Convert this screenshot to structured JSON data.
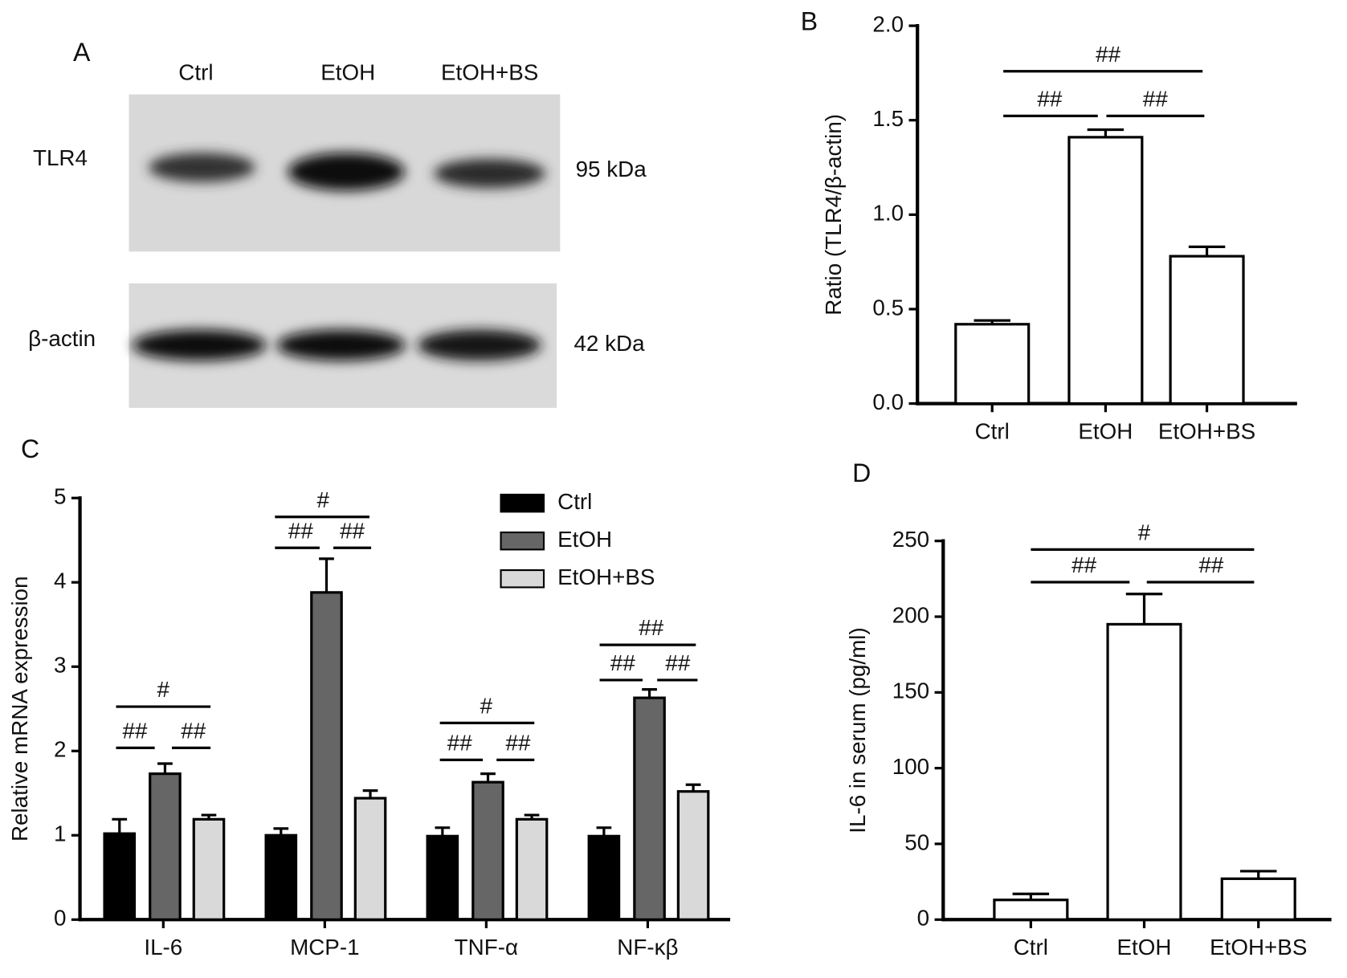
{
  "blot": {
    "panel_label": "A",
    "lanes": [
      "Ctrl",
      "EtOH",
      "EtOH+BS"
    ],
    "proteins": [
      "TLR4",
      "β-actin"
    ],
    "sizes": [
      "95 kDa",
      "42 kDa"
    ]
  },
  "chart_data": [
    {
      "type": "bar",
      "panel_label": "B",
      "ylabel": "Ratio (TLR4/β-actin)",
      "categories": [
        "Ctrl",
        "EtOH",
        "EtOH+BS"
      ],
      "values": [
        0.42,
        1.41,
        0.78
      ],
      "errors": [
        0.02,
        0.04,
        0.05
      ],
      "color": "#ffffff",
      "ylim": [
        0,
        2
      ],
      "yticks": [
        {
          "value": 0,
          "label": "0.0"
        },
        0.5,
        {
          "value": 1,
          "label": "1.0"
        },
        1.5,
        {
          "value": 2,
          "label": "2.0"
        }
      ],
      "annotations": [
        "##",
        "##",
        "##"
      ]
    },
    {
      "type": "grouped-bar",
      "panel_label": "C",
      "ylabel": "Relative mRNA expression",
      "categories": [
        "IL-6",
        "MCP-1",
        "TNF-α",
        "NF-κβ"
      ],
      "series": [
        {
          "name": "Ctrl",
          "color": "#000000",
          "values": [
            1.02,
            1.0,
            0.99,
            0.99
          ],
          "errors": [
            0.17,
            0.08,
            0.1,
            0.1
          ]
        },
        {
          "name": "EtOH",
          "color": "#666666",
          "values": [
            1.73,
            3.88,
            1.63,
            2.63
          ],
          "errors": [
            0.12,
            0.4,
            0.1,
            0.1
          ]
        },
        {
          "name": "EtOH+BS",
          "color": "#d9d9d9",
          "values": [
            1.19,
            1.44,
            1.19,
            1.52
          ],
          "errors": [
            0.05,
            0.09,
            0.05,
            0.08
          ]
        }
      ],
      "ylim": [
        0,
        5
      ],
      "yticks": [
        0,
        1,
        2,
        3,
        4,
        5
      ],
      "legend": "upper right",
      "annotations": [
        "#",
        "##",
        "##",
        "#",
        "##",
        "##",
        "#",
        "##",
        "##",
        "##",
        "##",
        "##"
      ]
    },
    {
      "type": "bar",
      "panel_label": "D",
      "ylabel": "IL-6 in serum (pg/ml)",
      "categories": [
        "Ctrl",
        "EtOH",
        "EtOH+BS"
      ],
      "values": [
        13,
        195,
        27
      ],
      "errors": [
        4,
        20,
        5
      ],
      "color": "#ffffff",
      "ylim": [
        0,
        250
      ],
      "yticks": [
        0,
        50,
        100,
        150,
        200,
        250
      ],
      "annotations": [
        "#",
        "##",
        "##"
      ]
    }
  ]
}
